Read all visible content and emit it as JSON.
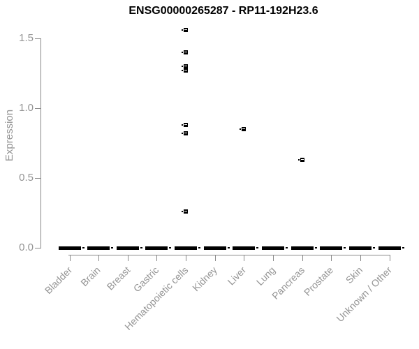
{
  "title": "ENSG00000265287 - RP11-192H23.6",
  "y_axis": {
    "label": "Expression",
    "tick_labels": [
      "0.0",
      "0.5",
      "1.0",
      "1.5"
    ]
  },
  "x_axis": {
    "tick_labels": [
      "Bladder",
      "Brain",
      "Breast",
      "Gastric",
      "Hematopoietic cells",
      "Kidney",
      "Liver",
      "Lung",
      "Pancreas",
      "Prostate",
      "Skin",
      "Unknown / Other"
    ]
  },
  "colors": {
    "background": "#ffffff",
    "title_text": "#000000",
    "axis_line": "#888888",
    "axis_text": "#949494",
    "marker": "#000000"
  },
  "chart_data": {
    "type": "boxplot",
    "title": "ENSG00000265287 - RP11-192H23.6",
    "xlabel": "",
    "ylabel": "Expression",
    "ylim": [
      0,
      1.6
    ],
    "yticks": [
      0.0,
      0.5,
      1.0,
      1.5
    ],
    "grid": "off",
    "legend": "none",
    "categories": [
      "Bladder",
      "Brain",
      "Breast",
      "Gastric",
      "Hematopoietic cells",
      "Kidney",
      "Liver",
      "Lung",
      "Pancreas",
      "Prostate",
      "Skin",
      "Unknown / Other"
    ],
    "boxes": [
      {
        "category": "Bladder",
        "median": 0.0,
        "q1": 0.0,
        "q3": 0.0,
        "outliers": []
      },
      {
        "category": "Brain",
        "median": 0.0,
        "q1": 0.0,
        "q3": 0.0,
        "outliers": []
      },
      {
        "category": "Breast",
        "median": 0.0,
        "q1": 0.0,
        "q3": 0.0,
        "outliers": []
      },
      {
        "category": "Gastric",
        "median": 0.0,
        "q1": 0.0,
        "q3": 0.0,
        "outliers": []
      },
      {
        "category": "Hematopoietic cells",
        "median": 0.0,
        "q1": 0.0,
        "q3": 0.0,
        "outliers": [
          1.56,
          1.4,
          1.3,
          1.27,
          0.88,
          0.82,
          0.26
        ]
      },
      {
        "category": "Kidney",
        "median": 0.0,
        "q1": 0.0,
        "q3": 0.0,
        "outliers": []
      },
      {
        "category": "Liver",
        "median": 0.0,
        "q1": 0.0,
        "q3": 0.0,
        "outliers": [
          0.85
        ]
      },
      {
        "category": "Lung",
        "median": 0.0,
        "q1": 0.0,
        "q3": 0.0,
        "outliers": []
      },
      {
        "category": "Pancreas",
        "median": 0.0,
        "q1": 0.0,
        "q3": 0.0,
        "outliers": [
          0.63
        ]
      },
      {
        "category": "Prostate",
        "median": 0.0,
        "q1": 0.0,
        "q3": 0.0,
        "outliers": []
      },
      {
        "category": "Skin",
        "median": 0.0,
        "q1": 0.0,
        "q3": 0.0,
        "outliers": []
      },
      {
        "category": "Unknown / Other",
        "median": 0.0,
        "q1": 0.0,
        "q3": 0.0,
        "outliers": []
      }
    ]
  }
}
